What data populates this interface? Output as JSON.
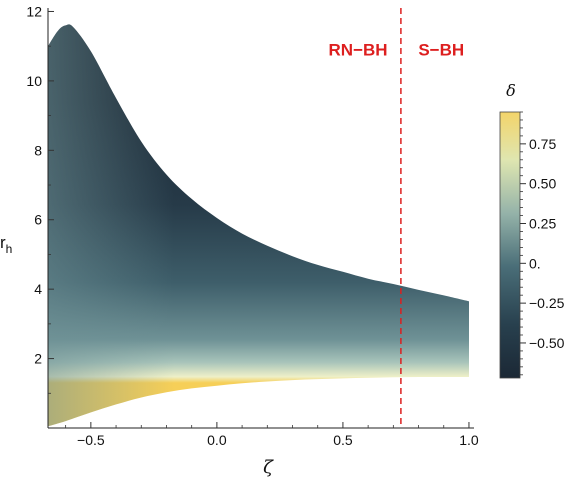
{
  "chart_data": {
    "type": "heatmap",
    "title": "",
    "xlabel": "ζ",
    "ylabel": "r",
    "ylabel_sub": "h",
    "xlim": [
      -0.67,
      1.02
    ],
    "ylim": [
      0,
      12.1
    ],
    "x_ticks": [
      -0.5,
      0.0,
      0.5,
      1.0
    ],
    "x_tick_labels": [
      "−0.5",
      "0.0",
      "0.5",
      "1.0"
    ],
    "y_ticks": [
      2,
      4,
      6,
      8,
      10,
      12
    ],
    "y_tick_labels": [
      "2",
      "4",
      "6",
      "8",
      "10",
      "12"
    ],
    "region": {
      "upper_boundary": [
        {
          "x": -0.67,
          "y": 11.0
        },
        {
          "x": -0.63,
          "y": 11.45
        },
        {
          "x": -0.6,
          "y": 11.6
        },
        {
          "x": -0.57,
          "y": 11.55
        },
        {
          "x": -0.5,
          "y": 10.85
        },
        {
          "x": -0.4,
          "y": 9.5
        },
        {
          "x": -0.3,
          "y": 8.25
        },
        {
          "x": -0.2,
          "y": 7.3
        },
        {
          "x": -0.1,
          "y": 6.6
        },
        {
          "x": 0.0,
          "y": 6.05
        },
        {
          "x": 0.1,
          "y": 5.6
        },
        {
          "x": 0.2,
          "y": 5.25
        },
        {
          "x": 0.3,
          "y": 4.95
        },
        {
          "x": 0.4,
          "y": 4.7
        },
        {
          "x": 0.5,
          "y": 4.5
        },
        {
          "x": 0.6,
          "y": 4.3
        },
        {
          "x": 0.7,
          "y": 4.15
        },
        {
          "x": 0.8,
          "y": 3.98
        },
        {
          "x": 0.9,
          "y": 3.82
        },
        {
          "x": 1.0,
          "y": 3.65
        }
      ],
      "lower_boundary": [
        {
          "x": -0.67,
          "y": 0.05
        },
        {
          "x": -0.6,
          "y": 0.2
        },
        {
          "x": -0.5,
          "y": 0.45
        },
        {
          "x": -0.4,
          "y": 0.68
        },
        {
          "x": -0.3,
          "y": 0.88
        },
        {
          "x": -0.2,
          "y": 1.03
        },
        {
          "x": -0.1,
          "y": 1.14
        },
        {
          "x": 0.0,
          "y": 1.22
        },
        {
          "x": 0.1,
          "y": 1.29
        },
        {
          "x": 0.2,
          "y": 1.34
        },
        {
          "x": 0.3,
          "y": 1.38
        },
        {
          "x": 0.4,
          "y": 1.41
        },
        {
          "x": 0.5,
          "y": 1.43
        },
        {
          "x": 0.6,
          "y": 1.45
        },
        {
          "x": 0.7,
          "y": 1.46
        },
        {
          "x": 0.8,
          "y": 1.47
        },
        {
          "x": 0.9,
          "y": 1.47
        },
        {
          "x": 1.0,
          "y": 1.47
        }
      ]
    },
    "vertical_line": {
      "x": 0.73,
      "color": "#dd1f1f",
      "style": "dashed"
    },
    "annotations": [
      {
        "text": "RN−BH",
        "x": 0.56,
        "y": 10.9,
        "color": "#dd1f1f"
      },
      {
        "text": "S−BH",
        "x": 0.89,
        "y": 10.9,
        "color": "#dd1f1f"
      }
    ],
    "colorbar": {
      "title": "δ",
      "min": -0.72,
      "max": 0.95,
      "ticks": [
        0.75,
        0.5,
        0.25,
        0.0,
        -0.25,
        -0.5
      ],
      "tick_labels": [
        "0.75",
        "0.50",
        "0.25",
        "0.",
        "−0.25",
        "−0.50"
      ],
      "colors": [
        "#1b2835",
        "#28404e",
        "#4a6e78",
        "#95b3a9",
        "#dfe6b0",
        "#f3d46a"
      ]
    },
    "grid": false
  }
}
